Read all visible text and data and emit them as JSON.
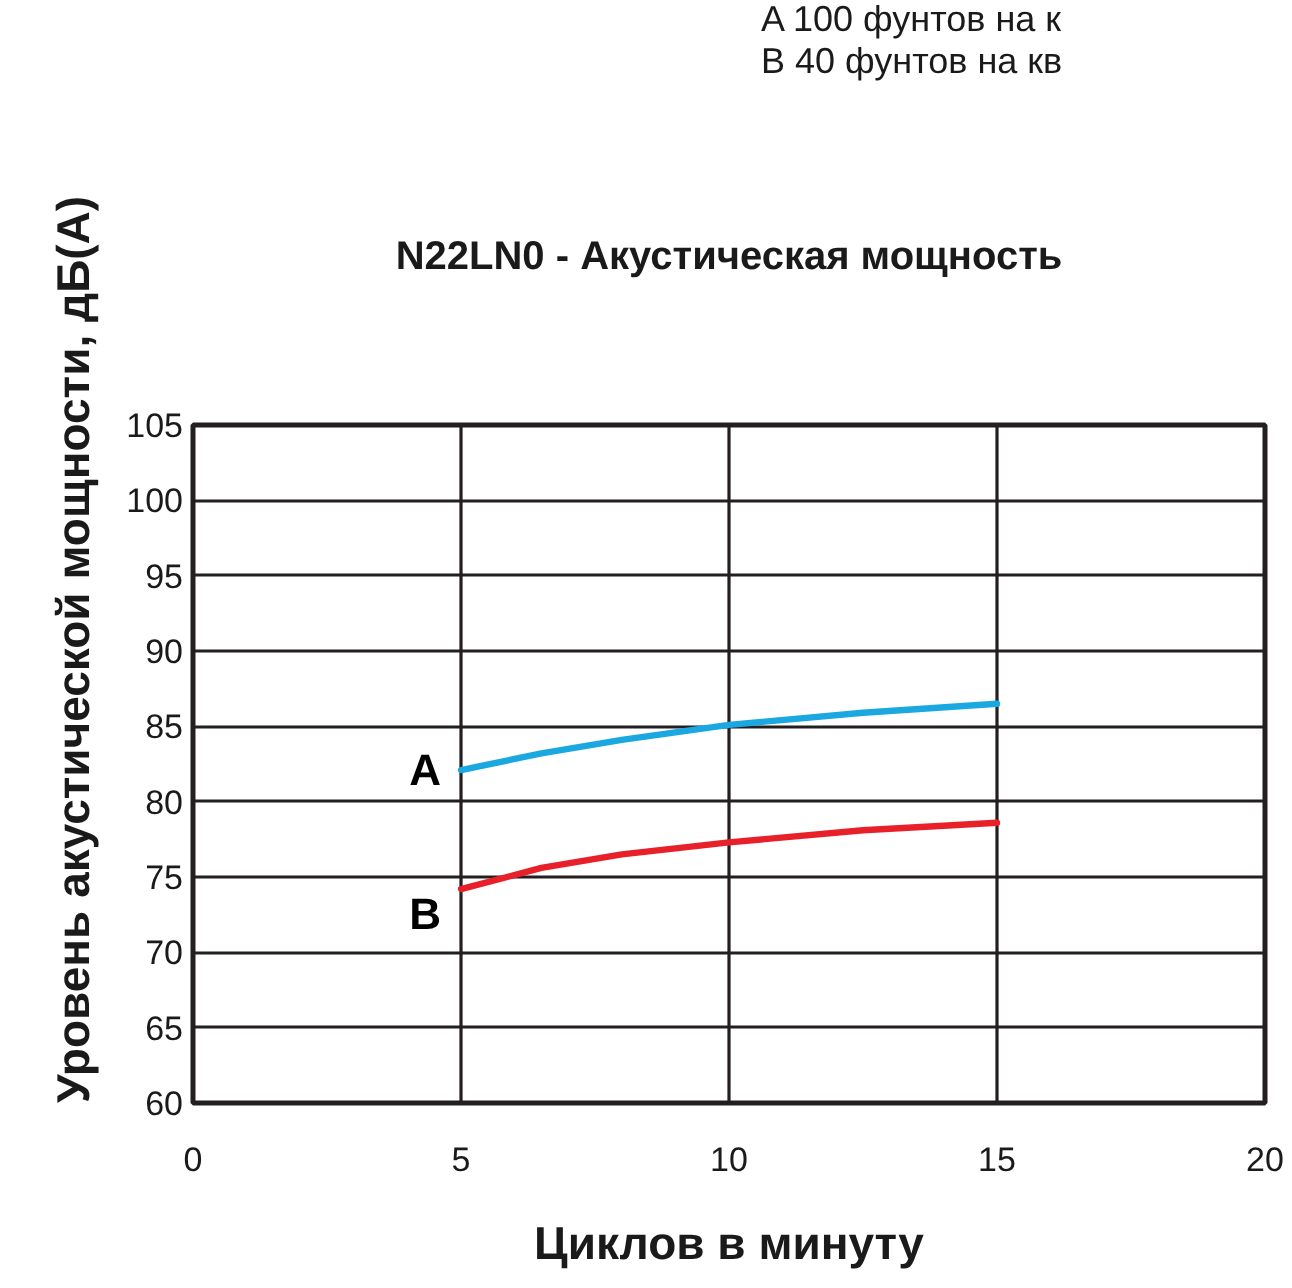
{
  "chart_data": {
    "type": "line",
    "title": "N22LN0 - Акустическая мощность",
    "xlabel": "Циклов в минуту",
    "ylabel": "Уровень акустической мощности, дБ(А)",
    "annotations": [
      "A 100 фунтов на к",
      "B 40 фунтов на кв"
    ],
    "x": [
      5,
      6.5,
      8,
      10,
      12.5,
      15
    ],
    "series": [
      {
        "name": "A",
        "color": "#1ba8e0",
        "values": [
          82.1,
          83.2,
          84.1,
          85.1,
          85.9,
          86.5
        ]
      },
      {
        "name": "B",
        "color": "#e8202a",
        "values": [
          74.2,
          75.6,
          76.5,
          77.3,
          78.1,
          78.6
        ]
      }
    ],
    "xlim": [
      0,
      20
    ],
    "xticks": [
      0,
      5,
      10,
      15,
      20
    ],
    "ylim": [
      60,
      105
    ],
    "yticks": [
      60,
      65,
      70,
      75,
      80,
      85,
      90,
      95,
      100,
      105
    ],
    "grid": true,
    "line_style": "solid"
  }
}
